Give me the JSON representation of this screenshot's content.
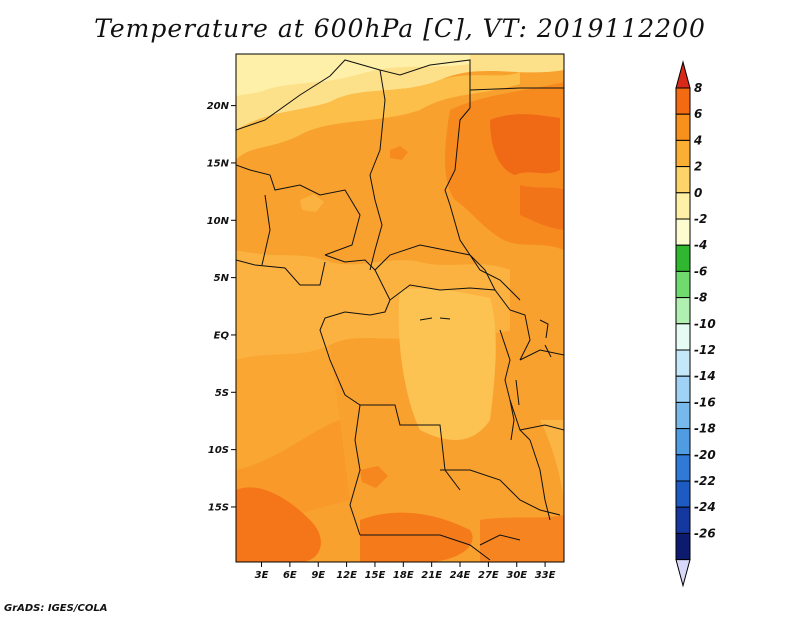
{
  "title": "Temperature at 600hPa [C], VT: 2019112200",
  "credit": "GrADS: IGES/COLA",
  "map": {
    "lat_labels": [
      "20N",
      "15N",
      "10N",
      "5N",
      "EQ",
      "5S",
      "10S",
      "15S"
    ],
    "lat_values": [
      20,
      15,
      10,
      5,
      0,
      -5,
      -10,
      -15
    ],
    "lon_labels": [
      "3E",
      "6E",
      "9E",
      "12E",
      "15E",
      "18E",
      "21E",
      "24E",
      "27E",
      "30E",
      "33E"
    ],
    "lon_values": [
      3,
      6,
      9,
      12,
      15,
      18,
      21,
      24,
      27,
      30,
      33
    ],
    "lon_range": [
      0.3,
      35
    ],
    "lat_range": [
      -19.8,
      24.5
    ]
  },
  "colorbar": {
    "labels": [
      "8",
      "6",
      "4",
      "2",
      "0",
      "-2",
      "-4",
      "-6",
      "-8",
      "-10",
      "-12",
      "-14",
      "-16",
      "-18",
      "-20",
      "-22",
      "-24",
      "-26"
    ],
    "colors": [
      "#e8361a",
      "#f46a12",
      "#f8901c",
      "#fbae34",
      "#fdd36a",
      "#fef0a6",
      "#fdfcd0",
      "#2fb82f",
      "#6fdb6f",
      "#b0f0b0",
      "#e6fbf4",
      "#c4e8fa",
      "#a0d2f5",
      "#78b9ec",
      "#4f9ce2",
      "#2f7ad6",
      "#1d5ac2",
      "#1438a0",
      "#0c1a70"
    ],
    "top_arrow_color": "#d72a18",
    "bottom_arrow_color": "#d8d8fa"
  }
}
